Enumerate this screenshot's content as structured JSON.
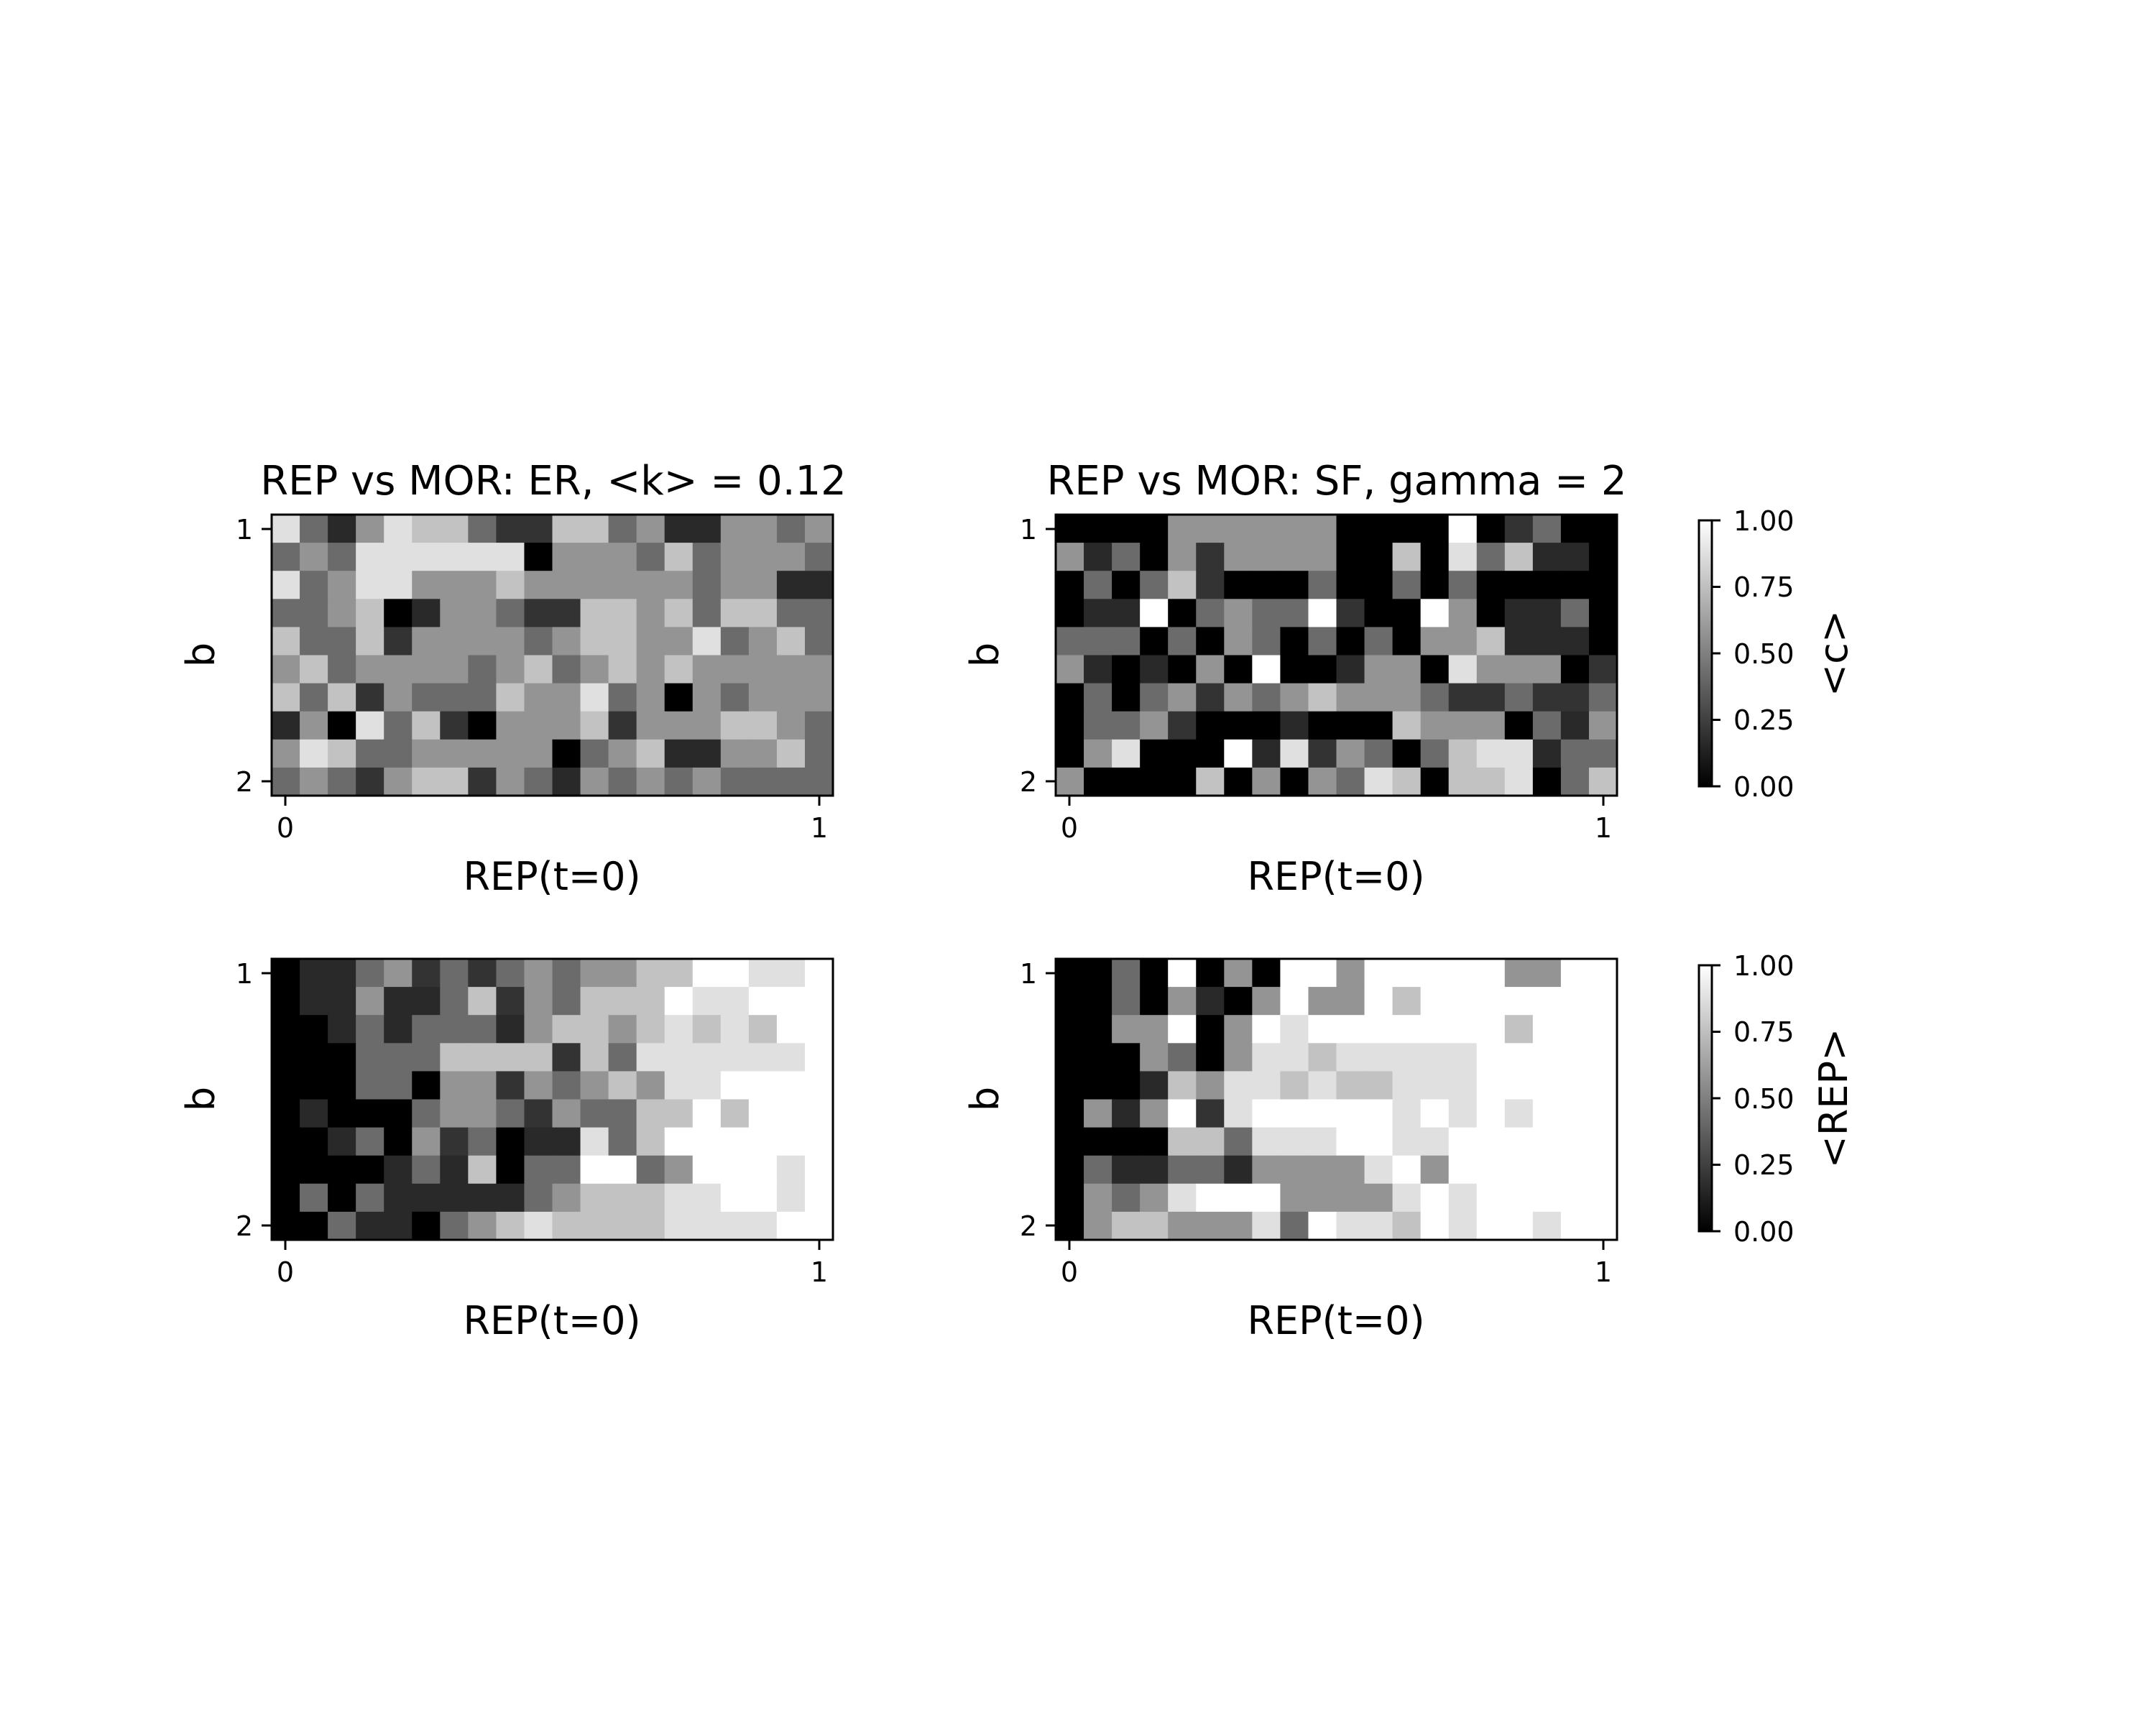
{
  "chart_data": [
    {
      "type": "heatmap",
      "title": "REP vs MOR: ER, <k> = 0.12",
      "xlabel": "REP(t=0)",
      "ylabel": "b",
      "xlim": [
        0,
        1
      ],
      "ylim": [
        1,
        2
      ],
      "xticks": [
        "0",
        "1"
      ],
      "yticks": [
        "1",
        "2"
      ],
      "colormap": "gray",
      "vmin": 0,
      "vmax": 1,
      "values": [
        [
          0.88,
          0.42,
          0.16,
          0.58,
          0.88,
          0.76,
          0.76,
          0.42,
          0.2,
          0.2,
          0.76,
          0.76,
          0.42,
          0.58,
          0.16,
          0.16,
          0.58,
          0.58,
          0.42,
          0.58
        ],
        [
          0.42,
          0.58,
          0.42,
          0.88,
          0.88,
          0.88,
          0.88,
          0.88,
          0.88,
          0.0,
          0.58,
          0.58,
          0.58,
          0.42,
          0.76,
          0.42,
          0.58,
          0.58,
          0.58,
          0.42
        ],
        [
          0.88,
          0.42,
          0.58,
          0.88,
          0.88,
          0.58,
          0.58,
          0.58,
          0.76,
          0.58,
          0.58,
          0.58,
          0.58,
          0.58,
          0.58,
          0.42,
          0.58,
          0.58,
          0.16,
          0.16
        ],
        [
          0.42,
          0.42,
          0.58,
          0.76,
          0.0,
          0.16,
          0.58,
          0.58,
          0.42,
          0.2,
          0.2,
          0.76,
          0.76,
          0.58,
          0.76,
          0.42,
          0.76,
          0.76,
          0.42,
          0.42
        ],
        [
          0.76,
          0.42,
          0.42,
          0.76,
          0.2,
          0.58,
          0.58,
          0.58,
          0.58,
          0.42,
          0.58,
          0.76,
          0.76,
          0.58,
          0.58,
          0.88,
          0.42,
          0.58,
          0.76,
          0.42
        ],
        [
          0.58,
          0.76,
          0.42,
          0.58,
          0.58,
          0.58,
          0.58,
          0.42,
          0.58,
          0.76,
          0.42,
          0.58,
          0.76,
          0.58,
          0.76,
          0.58,
          0.58,
          0.58,
          0.58,
          0.58
        ],
        [
          0.76,
          0.42,
          0.76,
          0.2,
          0.58,
          0.42,
          0.42,
          0.42,
          0.76,
          0.58,
          0.58,
          0.88,
          0.42,
          0.58,
          0.0,
          0.58,
          0.42,
          0.58,
          0.58,
          0.58
        ],
        [
          0.16,
          0.58,
          0.0,
          0.88,
          0.42,
          0.76,
          0.2,
          0.0,
          0.58,
          0.58,
          0.58,
          0.76,
          0.2,
          0.58,
          0.58,
          0.58,
          0.76,
          0.76,
          0.58,
          0.42
        ],
        [
          0.58,
          0.88,
          0.76,
          0.42,
          0.42,
          0.58,
          0.58,
          0.58,
          0.58,
          0.58,
          0.0,
          0.42,
          0.58,
          0.76,
          0.16,
          0.16,
          0.58,
          0.58,
          0.76,
          0.42
        ],
        [
          0.42,
          0.58,
          0.42,
          0.2,
          0.58,
          0.76,
          0.76,
          0.2,
          0.58,
          0.42,
          0.16,
          0.58,
          0.42,
          0.58,
          0.42,
          0.58,
          0.42,
          0.42,
          0.42,
          0.42
        ]
      ]
    },
    {
      "type": "heatmap",
      "title": "REP vs MOR: SF, gamma = 2",
      "xlabel": "REP(t=0)",
      "ylabel": "b",
      "xlim": [
        0,
        1
      ],
      "ylim": [
        1,
        2
      ],
      "xticks": [
        "0",
        "1"
      ],
      "yticks": [
        "1",
        "2"
      ],
      "colormap": "gray",
      "vmin": 0,
      "vmax": 1,
      "values": [
        [
          0.0,
          0.0,
          0.0,
          0.0,
          0.58,
          0.58,
          0.58,
          0.58,
          0.58,
          0.58,
          0.0,
          0.0,
          0.0,
          0.0,
          1.0,
          0.0,
          0.2,
          0.42,
          0.0,
          0.0
        ],
        [
          0.58,
          0.16,
          0.42,
          0.0,
          0.58,
          0.2,
          0.58,
          0.58,
          0.58,
          0.58,
          0.0,
          0.0,
          0.76,
          0.0,
          0.88,
          0.42,
          0.76,
          0.16,
          0.16,
          0.0
        ],
        [
          0.0,
          0.42,
          0.0,
          0.42,
          0.76,
          0.2,
          0.0,
          0.0,
          0.0,
          0.42,
          0.0,
          0.0,
          0.42,
          0.0,
          0.42,
          0.0,
          0.0,
          0.0,
          0.0,
          0.0
        ],
        [
          0.0,
          0.16,
          0.16,
          1.0,
          0.0,
          0.42,
          0.58,
          0.42,
          0.42,
          1.0,
          0.2,
          0.0,
          0.0,
          1.0,
          0.58,
          0.0,
          0.16,
          0.16,
          0.42,
          0.0
        ],
        [
          0.42,
          0.42,
          0.42,
          0.0,
          0.42,
          0.0,
          0.58,
          0.42,
          0.0,
          0.42,
          0.0,
          0.42,
          0.0,
          0.58,
          0.58,
          0.76,
          0.16,
          0.16,
          0.16,
          0.0
        ],
        [
          0.58,
          0.16,
          0.0,
          0.16,
          0.0,
          0.58,
          0.0,
          1.0,
          0.0,
          0.0,
          0.16,
          0.58,
          0.58,
          0.0,
          0.88,
          0.58,
          0.58,
          0.58,
          0.0,
          0.2
        ],
        [
          0.0,
          0.42,
          0.0,
          0.42,
          0.58,
          0.2,
          0.58,
          0.42,
          0.58,
          0.76,
          0.58,
          0.58,
          0.58,
          0.42,
          0.2,
          0.2,
          0.42,
          0.2,
          0.2,
          0.42
        ],
        [
          0.0,
          0.42,
          0.42,
          0.58,
          0.2,
          0.0,
          0.0,
          0.0,
          0.16,
          0.0,
          0.0,
          0.0,
          0.76,
          0.58,
          0.58,
          0.58,
          0.0,
          0.42,
          0.16,
          0.58
        ],
        [
          0.0,
          0.58,
          0.88,
          0.0,
          0.0,
          0.0,
          1.0,
          0.16,
          0.88,
          0.2,
          0.58,
          0.42,
          0.0,
          0.42,
          0.76,
          0.88,
          0.88,
          0.16,
          0.42,
          0.42
        ],
        [
          0.58,
          0.0,
          0.0,
          0.0,
          0.0,
          0.76,
          0.0,
          0.58,
          0.0,
          0.58,
          0.42,
          0.88,
          0.76,
          0.0,
          0.76,
          0.76,
          0.88,
          0.0,
          0.42,
          0.76
        ]
      ]
    },
    {
      "type": "heatmap",
      "title": "",
      "xlabel": "REP(t=0)",
      "ylabel": "b",
      "xlim": [
        0,
        1
      ],
      "ylim": [
        1,
        2
      ],
      "xticks": [
        "0",
        "1"
      ],
      "yticks": [
        "1",
        "2"
      ],
      "colormap": "gray",
      "vmin": 0,
      "vmax": 1,
      "values": [
        [
          0.0,
          0.16,
          0.16,
          0.42,
          0.58,
          0.2,
          0.42,
          0.2,
          0.42,
          0.58,
          0.42,
          0.58,
          0.58,
          0.76,
          0.76,
          1.0,
          1.0,
          0.88,
          0.88,
          1.0
        ],
        [
          0.0,
          0.16,
          0.16,
          0.58,
          0.16,
          0.16,
          0.42,
          0.76,
          0.2,
          0.58,
          0.42,
          0.76,
          0.76,
          0.76,
          1.0,
          0.88,
          0.88,
          1.0,
          1.0,
          1.0
        ],
        [
          0.0,
          0.0,
          0.16,
          0.42,
          0.16,
          0.42,
          0.42,
          0.42,
          0.16,
          0.58,
          0.76,
          0.76,
          0.58,
          0.76,
          0.88,
          0.76,
          0.88,
          0.76,
          1.0,
          1.0
        ],
        [
          0.0,
          0.0,
          0.0,
          0.42,
          0.42,
          0.42,
          0.76,
          0.76,
          0.76,
          0.76,
          0.2,
          0.76,
          0.42,
          0.88,
          0.88,
          0.88,
          0.88,
          0.88,
          0.88,
          1.0
        ],
        [
          0.0,
          0.0,
          0.0,
          0.42,
          0.42,
          0.0,
          0.58,
          0.58,
          0.2,
          0.58,
          0.42,
          0.58,
          0.76,
          0.58,
          0.88,
          0.88,
          1.0,
          1.0,
          1.0,
          1.0
        ],
        [
          0.0,
          0.16,
          0.0,
          0.0,
          0.0,
          0.42,
          0.58,
          0.58,
          0.42,
          0.2,
          0.58,
          0.42,
          0.42,
          0.76,
          0.76,
          1.0,
          0.76,
          1.0,
          1.0,
          1.0
        ],
        [
          0.0,
          0.0,
          0.16,
          0.42,
          0.0,
          0.58,
          0.2,
          0.42,
          0.0,
          0.16,
          0.16,
          0.88,
          0.42,
          0.76,
          1.0,
          1.0,
          1.0,
          1.0,
          1.0,
          1.0
        ],
        [
          0.0,
          0.0,
          0.0,
          0.0,
          0.16,
          0.42,
          0.16,
          0.76,
          0.0,
          0.42,
          0.42,
          1.0,
          1.0,
          0.42,
          0.58,
          1.0,
          1.0,
          1.0,
          0.88,
          1.0
        ],
        [
          0.0,
          0.42,
          0.0,
          0.42,
          0.16,
          0.16,
          0.16,
          0.16,
          0.16,
          0.42,
          0.58,
          0.76,
          0.76,
          0.76,
          0.88,
          0.88,
          1.0,
          1.0,
          0.88,
          1.0
        ],
        [
          0.0,
          0.0,
          0.42,
          0.16,
          0.16,
          0.0,
          0.42,
          0.58,
          0.76,
          0.88,
          0.76,
          0.76,
          0.76,
          0.76,
          0.88,
          0.88,
          0.88,
          0.88,
          1.0,
          1.0
        ]
      ]
    },
    {
      "type": "heatmap",
      "title": "",
      "xlabel": "REP(t=0)",
      "ylabel": "b",
      "xlim": [
        0,
        1
      ],
      "ylim": [
        1,
        2
      ],
      "xticks": [
        "0",
        "1"
      ],
      "yticks": [
        "1",
        "2"
      ],
      "colormap": "gray",
      "vmin": 0,
      "vmax": 1,
      "values": [
        [
          0.0,
          0.0,
          0.42,
          0.0,
          1.0,
          0.0,
          0.58,
          0.0,
          1.0,
          1.0,
          0.58,
          1.0,
          1.0,
          1.0,
          1.0,
          1.0,
          0.58,
          0.58,
          1.0,
          1.0
        ],
        [
          0.0,
          0.0,
          0.42,
          0.0,
          0.58,
          0.16,
          0.0,
          0.58,
          1.0,
          0.58,
          0.58,
          1.0,
          0.76,
          1.0,
          1.0,
          1.0,
          1.0,
          1.0,
          1.0,
          1.0
        ],
        [
          0.0,
          0.0,
          0.58,
          0.58,
          1.0,
          0.0,
          0.58,
          1.0,
          0.88,
          1.0,
          1.0,
          1.0,
          1.0,
          1.0,
          1.0,
          1.0,
          0.76,
          1.0,
          1.0,
          1.0
        ],
        [
          0.0,
          0.0,
          0.0,
          0.58,
          0.42,
          0.0,
          0.58,
          0.88,
          0.88,
          0.76,
          0.88,
          0.88,
          0.88,
          0.88,
          0.88,
          1.0,
          1.0,
          1.0,
          1.0,
          1.0
        ],
        [
          0.0,
          0.0,
          0.0,
          0.16,
          0.76,
          0.58,
          0.88,
          0.88,
          0.76,
          0.88,
          0.76,
          0.76,
          0.88,
          0.88,
          0.88,
          1.0,
          1.0,
          1.0,
          1.0,
          1.0
        ],
        [
          0.0,
          0.58,
          0.16,
          0.58,
          1.0,
          0.2,
          0.88,
          1.0,
          1.0,
          1.0,
          1.0,
          1.0,
          0.88,
          1.0,
          0.88,
          1.0,
          0.88,
          1.0,
          1.0,
          1.0
        ],
        [
          0.0,
          0.0,
          0.0,
          0.0,
          0.76,
          0.76,
          0.42,
          0.88,
          0.88,
          0.88,
          1.0,
          1.0,
          0.88,
          0.88,
          1.0,
          1.0,
          1.0,
          1.0,
          1.0,
          1.0
        ],
        [
          0.0,
          0.42,
          0.16,
          0.16,
          0.42,
          0.42,
          0.16,
          0.58,
          0.58,
          0.58,
          0.58,
          0.88,
          1.0,
          0.58,
          1.0,
          1.0,
          1.0,
          1.0,
          1.0,
          1.0
        ],
        [
          0.0,
          0.58,
          0.42,
          0.58,
          0.88,
          1.0,
          1.0,
          1.0,
          0.58,
          0.58,
          0.58,
          0.58,
          0.88,
          1.0,
          0.88,
          1.0,
          1.0,
          1.0,
          1.0,
          1.0
        ],
        [
          0.0,
          0.58,
          0.76,
          0.76,
          0.58,
          0.58,
          0.58,
          0.88,
          0.42,
          1.0,
          0.88,
          0.88,
          0.76,
          1.0,
          0.88,
          1.0,
          1.0,
          0.88,
          1.0,
          1.0
        ]
      ]
    }
  ],
  "colorbars": [
    {
      "label": "<c>",
      "ticks": [
        "0.00",
        "0.25",
        "0.50",
        "0.75",
        "1.00"
      ]
    },
    {
      "label": "<REP>",
      "ticks": [
        "0.00",
        "0.25",
        "0.50",
        "0.75",
        "1.00"
      ]
    }
  ]
}
